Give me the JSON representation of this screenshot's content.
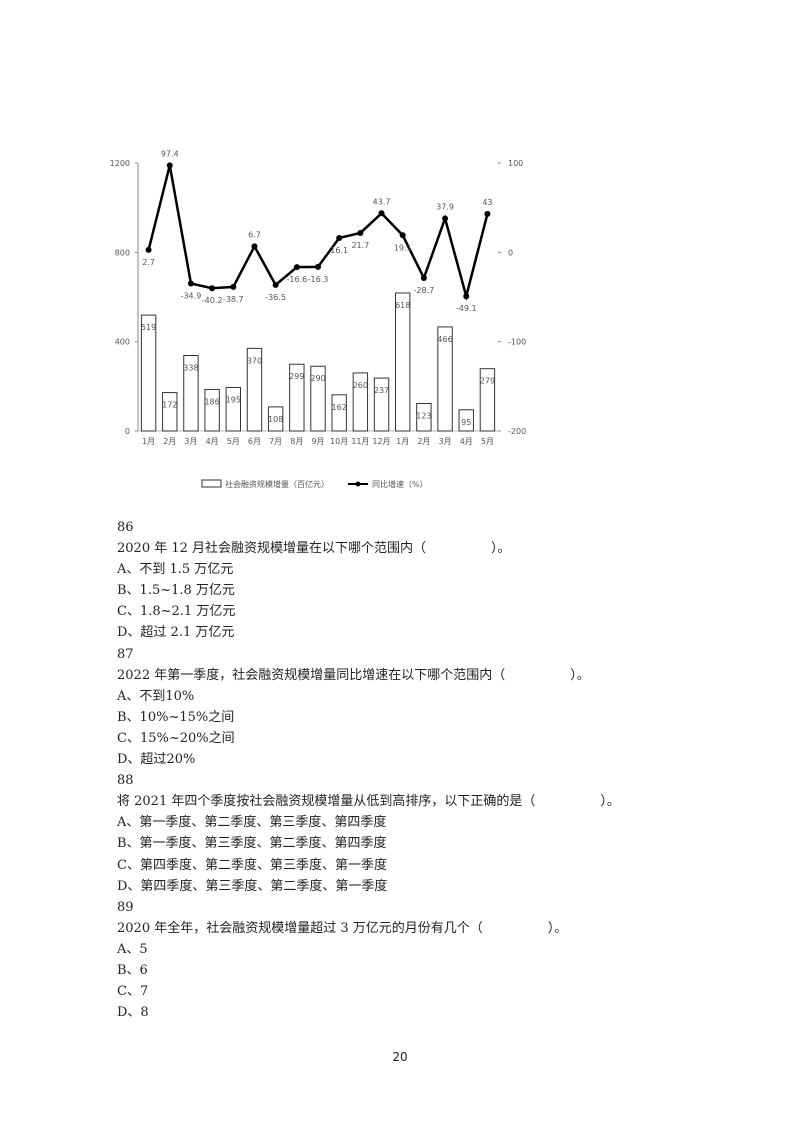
{
  "chart_data": {
    "type": "bar+line",
    "categories": [
      "1月",
      "2月",
      "3月",
      "4月",
      "5月",
      "6月",
      "7月",
      "8月",
      "9月",
      "10月",
      "11月",
      "12月",
      "1月",
      "2月",
      "3月",
      "4月",
      "5月"
    ],
    "series": [
      {
        "name": "社会融资规模增量（百亿元）",
        "type": "bar",
        "axis": "left",
        "values": [
          519,
          172,
          338,
          186,
          195,
          370,
          108,
          299,
          290,
          162,
          260,
          237,
          618,
          123,
          466,
          95,
          279
        ]
      },
      {
        "name": "同比增速（%）",
        "type": "line",
        "axis": "right",
        "values": [
          2.7,
          97.4,
          -34.9,
          -40.2,
          -38.7,
          6.7,
          -36.5,
          -16.6,
          -16.3,
          16.1,
          21.7,
          43.7,
          19.1,
          -28.7,
          37.9,
          -49.1,
          43
        ]
      }
    ],
    "left_axis": {
      "ylim": [
        0,
        1200
      ],
      "ticks": [
        0,
        400,
        800,
        1200
      ]
    },
    "right_axis": {
      "ylim": [
        -200,
        100
      ],
      "ticks": [
        -200,
        -100,
        0,
        100
      ]
    },
    "legend_placement": "bottom",
    "grid": false,
    "bar_color": "#ffffff",
    "line_color": "#000000"
  },
  "questions": [
    {
      "number": "86",
      "stem": "2020 年 12 月社会融资规模增量在以下哪个范围内（　　　　　）。",
      "options": [
        "A、不到 1.5 万亿元",
        "B、1.5~1.8 万亿元",
        "C、1.8~2.1 万亿元",
        "D、超过 2.1 万亿元"
      ]
    },
    {
      "number": "87",
      "stem": "2022 年第一季度，社会融资规模增量同比增速在以下哪个范围内（　　　　　）。",
      "options": [
        "A、不到10%",
        "B、10%~15%之间",
        "C、15%~20%之间",
        "D、超过20%"
      ]
    },
    {
      "number": "88",
      "stem": "将 2021 年四个季度按社会融资规模增量从低到高排序，以下正确的是（　　　　　）。",
      "options": [
        "A、第一季度、第二季度、第三季度、第四季度",
        "B、第一季度、第三季度、第二季度、第四季度",
        "C、第四季度、第二季度、第三季度、第一季度",
        "D、第四季度、第三季度、第二季度、第一季度"
      ]
    },
    {
      "number": "89",
      "stem": "2020 年全年，社会融资规模增量超过 3 万亿元的月份有几个（　　　　　）。",
      "options": [
        "A、5",
        "B、6",
        "C、7",
        "D、8"
      ]
    }
  ],
  "page_number": "20"
}
